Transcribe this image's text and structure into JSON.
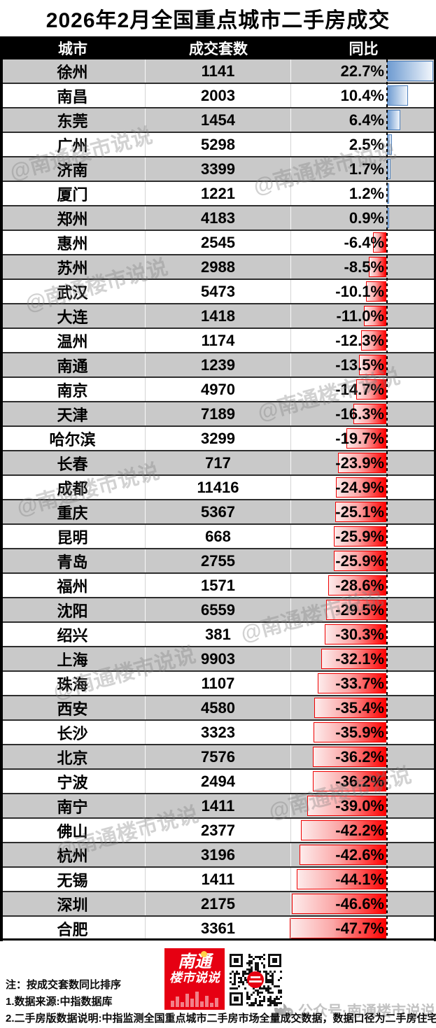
{
  "title": "2026年2月全国重点城市二手房成交",
  "table": {
    "columns": [
      "城市",
      "成交套数",
      "同比"
    ],
    "rows": [
      {
        "city": "徐州",
        "volume": "1141",
        "yoy": 22.7,
        "yoy_display": "22.7%"
      },
      {
        "city": "南昌",
        "volume": "2003",
        "yoy": 10.4,
        "yoy_display": "10.4%"
      },
      {
        "city": "东莞",
        "volume": "1454",
        "yoy": 6.4,
        "yoy_display": "6.4%"
      },
      {
        "city": "广州",
        "volume": "5298",
        "yoy": 2.5,
        "yoy_display": "2.5%"
      },
      {
        "city": "济南",
        "volume": "3399",
        "yoy": 1.7,
        "yoy_display": "1.7%"
      },
      {
        "city": "厦门",
        "volume": "1221",
        "yoy": 1.2,
        "yoy_display": "1.2%"
      },
      {
        "city": "郑州",
        "volume": "4183",
        "yoy": 0.9,
        "yoy_display": "0.9%"
      },
      {
        "city": "惠州",
        "volume": "2545",
        "yoy": -6.4,
        "yoy_display": "-6.4%"
      },
      {
        "city": "苏州",
        "volume": "2988",
        "yoy": -8.5,
        "yoy_display": "-8.5%"
      },
      {
        "city": "武汉",
        "volume": "5473",
        "yoy": -10.1,
        "yoy_display": "-10.1%"
      },
      {
        "city": "大连",
        "volume": "1418",
        "yoy": -11.0,
        "yoy_display": "-11.0%"
      },
      {
        "city": "温州",
        "volume": "1174",
        "yoy": -12.3,
        "yoy_display": "-12.3%"
      },
      {
        "city": "南通",
        "volume": "1239",
        "yoy": -13.5,
        "yoy_display": "-13.5%"
      },
      {
        "city": "南京",
        "volume": "4970",
        "yoy": -14.7,
        "yoy_display": "-14.7%"
      },
      {
        "city": "天津",
        "volume": "7189",
        "yoy": -16.3,
        "yoy_display": "-16.3%"
      },
      {
        "city": "哈尔滨",
        "volume": "3299",
        "yoy": -19.7,
        "yoy_display": "-19.7%"
      },
      {
        "city": "长春",
        "volume": "717",
        "yoy": -23.9,
        "yoy_display": "-23.9%"
      },
      {
        "city": "成都",
        "volume": "11416",
        "yoy": -24.9,
        "yoy_display": "-24.9%"
      },
      {
        "city": "重庆",
        "volume": "5367",
        "yoy": -25.1,
        "yoy_display": "-25.1%"
      },
      {
        "city": "昆明",
        "volume": "668",
        "yoy": -25.9,
        "yoy_display": "-25.9%"
      },
      {
        "city": "青岛",
        "volume": "2755",
        "yoy": -25.9,
        "yoy_display": "-25.9%"
      },
      {
        "city": "福州",
        "volume": "1571",
        "yoy": -28.6,
        "yoy_display": "-28.6%"
      },
      {
        "city": "沈阳",
        "volume": "6559",
        "yoy": -29.5,
        "yoy_display": "-29.5%"
      },
      {
        "city": "绍兴",
        "volume": "381",
        "yoy": -30.3,
        "yoy_display": "-30.3%"
      },
      {
        "city": "上海",
        "volume": "9903",
        "yoy": -32.1,
        "yoy_display": "-32.1%"
      },
      {
        "city": "珠海",
        "volume": "1107",
        "yoy": -33.7,
        "yoy_display": "-33.7%"
      },
      {
        "city": "西安",
        "volume": "4580",
        "yoy": -35.4,
        "yoy_display": "-35.4%"
      },
      {
        "city": "长沙",
        "volume": "3323",
        "yoy": -35.9,
        "yoy_display": "-35.9%"
      },
      {
        "city": "北京",
        "volume": "7576",
        "yoy": -36.2,
        "yoy_display": "-36.2%"
      },
      {
        "city": "宁波",
        "volume": "2494",
        "yoy": -36.2,
        "yoy_display": "-36.2%"
      },
      {
        "city": "南宁",
        "volume": "1411",
        "yoy": -39.0,
        "yoy_display": "-39.0%"
      },
      {
        "city": "佛山",
        "volume": "2377",
        "yoy": -42.2,
        "yoy_display": "-42.2%"
      },
      {
        "city": "杭州",
        "volume": "3196",
        "yoy": -42.6,
        "yoy_display": "-42.6%"
      },
      {
        "city": "无锡",
        "volume": "1411",
        "yoy": -44.1,
        "yoy_display": "-44.1%"
      },
      {
        "city": "深圳",
        "volume": "2175",
        "yoy": -46.6,
        "yoy_display": "-46.6%"
      },
      {
        "city": "合肥",
        "volume": "3361",
        "yoy": -47.7,
        "yoy_display": "-47.7%"
      }
    ]
  },
  "chart_data": {
    "type": "bar",
    "orientation": "horizontal",
    "title": "2026年2月全国重点城市二手房成交",
    "categories": [
      "徐州",
      "南昌",
      "东莞",
      "广州",
      "济南",
      "厦门",
      "郑州",
      "惠州",
      "苏州",
      "武汉",
      "大连",
      "温州",
      "南通",
      "南京",
      "天津",
      "哈尔滨",
      "长春",
      "成都",
      "重庆",
      "昆明",
      "青岛",
      "福州",
      "沈阳",
      "绍兴",
      "上海",
      "珠海",
      "西安",
      "长沙",
      "北京",
      "宁波",
      "南宁",
      "佛山",
      "杭州",
      "无锡",
      "深圳",
      "合肥"
    ],
    "series": [
      {
        "name": "成交套数",
        "values": [
          1141,
          2003,
          1454,
          5298,
          3399,
          1221,
          4183,
          2545,
          2988,
          5473,
          1418,
          1174,
          1239,
          4970,
          7189,
          3299,
          717,
          11416,
          5367,
          668,
          2755,
          1571,
          6559,
          381,
          9903,
          1107,
          4580,
          3323,
          7576,
          2494,
          1411,
          2377,
          3196,
          1411,
          2175,
          3361
        ]
      },
      {
        "name": "同比(%)",
        "values": [
          22.7,
          10.4,
          6.4,
          2.5,
          1.7,
          1.2,
          0.9,
          -6.4,
          -8.5,
          -10.1,
          -11.0,
          -12.3,
          -13.5,
          -14.7,
          -16.3,
          -19.7,
          -23.9,
          -24.9,
          -25.1,
          -25.9,
          -25.9,
          -28.6,
          -29.5,
          -30.3,
          -32.1,
          -33.7,
          -35.4,
          -35.9,
          -36.2,
          -36.2,
          -39.0,
          -42.2,
          -42.6,
          -44.1,
          -46.6,
          -47.7
        ]
      }
    ],
    "legend_position": "none",
    "grid": false,
    "note": "同比 shown as Excel-style data bars: positive blue bars right of dashed zero line, negative red bars extending left"
  },
  "watermark": {
    "diagonal_text": "@南通楼市说说",
    "footer_text": "公众号·南通楼市说说"
  },
  "footnotes": {
    "note0": "注：按成交套数同比排序",
    "note1": "1.数据来源:中指数据库",
    "note2": "2.二手房版数据说明:中指监测全国重点城市二手房市场全量成交数据，数据口径为二手房住宅。"
  },
  "logo": {
    "line1": "南通",
    "line2": "楼市说说"
  },
  "colors": {
    "header_bg": "#000000",
    "alt_row": "#c9c9c9",
    "positive_bar_border": "#4f81bd",
    "negative_bar_border": "#ff0000",
    "logo_red": "#e60012"
  }
}
